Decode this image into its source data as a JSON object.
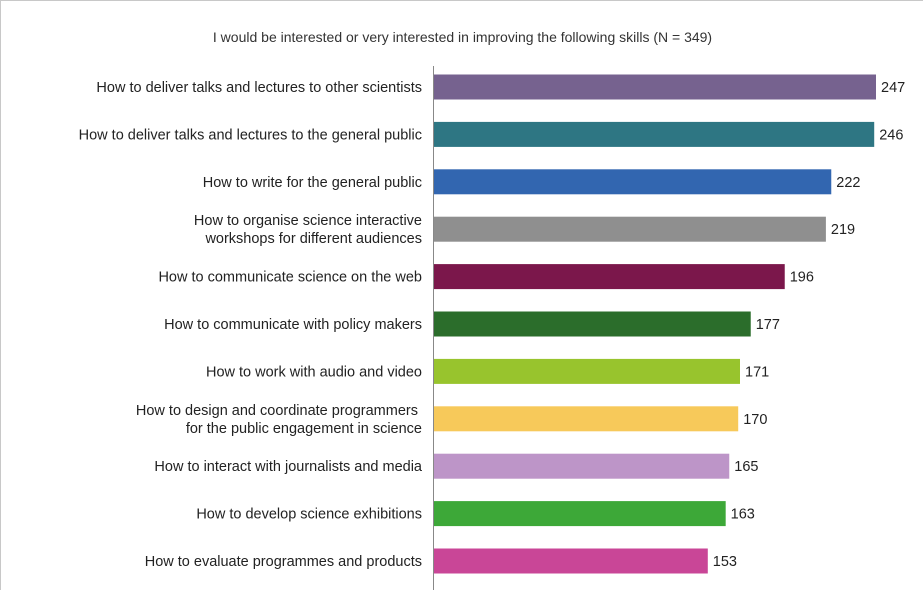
{
  "chart_data": {
    "type": "bar",
    "orientation": "horizontal",
    "title": "I would be interested or very interested in improving the following skills (N = 349)",
    "categories": [
      "How to deliver talks and lectures to other scientists",
      "How to deliver talks and lectures to the general public",
      "How to write for the general public",
      "How to organise science interactive\nworkshops for different audiences",
      "How to communicate science on the web",
      "How to communicate with policy makers",
      "How to work with audio and video",
      "How to design and coordinate programmers \nfor the public engagement in science",
      "How to interact with journalists and media",
      "How to develop science exhibitions",
      "How to evaluate programmes and products"
    ],
    "values": [
      247,
      246,
      222,
      219,
      196,
      177,
      171,
      170,
      165,
      163,
      153
    ],
    "colors": [
      "#76628f",
      "#2e7683",
      "#3266b0",
      "#8f8f8f",
      "#7b174b",
      "#2b6d2b",
      "#98c42d",
      "#f7c95a",
      "#bd95c8",
      "#3da838",
      "#c94697"
    ],
    "xlim": [
      0,
      247
    ],
    "grid": false,
    "legend": "none"
  }
}
